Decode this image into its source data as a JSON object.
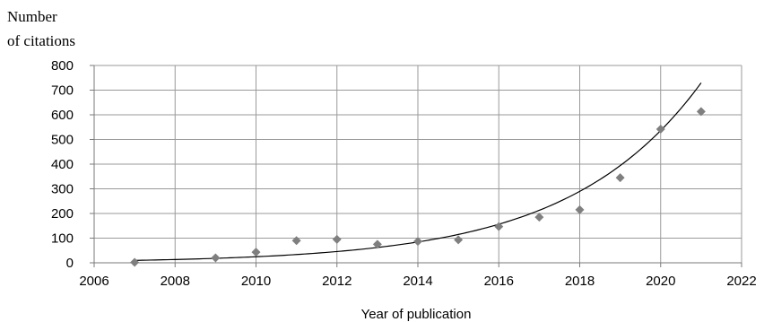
{
  "chart_data": {
    "type": "scatter",
    "title": "",
    "ylabel_lines": [
      "Number",
      "of citations"
    ],
    "xlabel": "Year of publication",
    "xlim": [
      2006,
      2022
    ],
    "ylim": [
      0,
      800
    ],
    "x_ticks": [
      2006,
      2008,
      2010,
      2012,
      2014,
      2016,
      2018,
      2020,
      2022
    ],
    "y_ticks": [
      0,
      100,
      200,
      300,
      400,
      500,
      600,
      700,
      800
    ],
    "grid": true,
    "legend": "none",
    "marker_color": "#7f7f7f",
    "trendline": {
      "type": "exponential",
      "color": "#000000",
      "x_range": [
        2007,
        2021
      ]
    },
    "series": [
      {
        "x": [
          2007,
          2009,
          2010,
          2011,
          2012,
          2013,
          2014,
          2015,
          2016,
          2017,
          2018,
          2019,
          2020,
          2021
        ],
        "y": [
          2,
          20,
          43,
          90,
          95,
          75,
          87,
          93,
          147,
          185,
          215,
          345,
          542,
          613
        ]
      }
    ]
  }
}
